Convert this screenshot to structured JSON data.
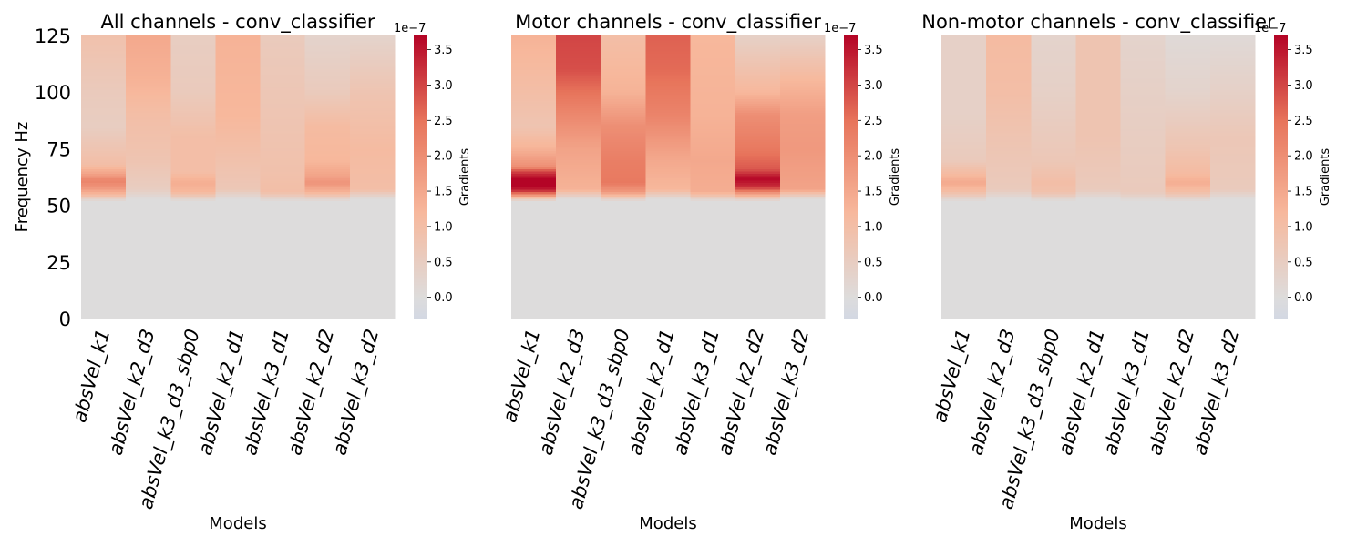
{
  "chart_data": [
    {
      "type": "heatmap",
      "title": "All channels - conv_classifier",
      "xlabel": "Models",
      "ylabel": "Frequency Hz",
      "categories": [
        "absVel_k1",
        "absVel_k2_d3",
        "absVel_k3_d3_sbp0",
        "absVel_k2_d1",
        "absVel_k3_d1",
        "absVel_k2_d2",
        "absVel_k3_d2"
      ],
      "yticks": [
        0,
        25,
        50,
        75,
        100,
        125
      ],
      "ylim": [
        0,
        125
      ],
      "colorbar": {
        "label": "Gradients",
        "multiplier": "1e−7",
        "range": [
          -0.3,
          3.7
        ],
        "ticks": [
          0.0,
          0.5,
          1.0,
          1.5,
          2.0,
          2.5,
          3.0,
          3.5
        ]
      },
      "profiles": [
        [
          [
            0,
            0
          ],
          [
            52,
            0
          ],
          [
            55,
            1.2
          ],
          [
            58,
            1.9
          ],
          [
            61,
            2.2
          ],
          [
            64,
            1.6
          ],
          [
            68,
            1.0
          ],
          [
            75,
            0.8
          ],
          [
            85,
            0.5
          ],
          [
            100,
            0.6
          ],
          [
            125,
            0.9
          ]
        ],
        [
          [
            0,
            0
          ],
          [
            53,
            0
          ],
          [
            57,
            0.5
          ],
          [
            70,
            0.8
          ],
          [
            90,
            1.0
          ],
          [
            105,
            1.3
          ],
          [
            125,
            1.5
          ]
        ],
        [
          [
            0,
            0
          ],
          [
            52,
            0
          ],
          [
            56,
            1.2
          ],
          [
            60,
            1.4
          ],
          [
            65,
            1.0
          ],
          [
            80,
            1.0
          ],
          [
            100,
            0.6
          ],
          [
            125,
            0.5
          ]
        ],
        [
          [
            0,
            0
          ],
          [
            53,
            0
          ],
          [
            57,
            0.7
          ],
          [
            70,
            0.9
          ],
          [
            90,
            1.2
          ],
          [
            125,
            1.3
          ]
        ],
        [
          [
            0,
            0
          ],
          [
            52,
            0
          ],
          [
            56,
            1.0
          ],
          [
            65,
            0.9
          ],
          [
            85,
            0.8
          ],
          [
            125,
            0.6
          ]
        ],
        [
          [
            0,
            0
          ],
          [
            52,
            0
          ],
          [
            56,
            1.3
          ],
          [
            60,
            1.9
          ],
          [
            63,
            1.6
          ],
          [
            70,
            1.2
          ],
          [
            85,
            1.1
          ],
          [
            100,
            0.6
          ],
          [
            125,
            0.3
          ]
        ],
        [
          [
            0,
            0
          ],
          [
            53,
            0
          ],
          [
            57,
            1.0
          ],
          [
            75,
            1.1
          ],
          [
            100,
            0.8
          ],
          [
            125,
            0.3
          ]
        ]
      ]
    },
    {
      "type": "heatmap",
      "title": "Motor channels - conv_classifier",
      "xlabel": "Models",
      "categories": [
        "absVel_k1",
        "absVel_k2_d3",
        "absVel_k3_d3_sbp0",
        "absVel_k2_d1",
        "absVel_k3_d1",
        "absVel_k2_d2",
        "absVel_k3_d2"
      ],
      "ylim": [
        0,
        125
      ],
      "colorbar": {
        "label": "Gradients",
        "multiplier": "1e−7",
        "range": [
          -0.3,
          3.7
        ],
        "ticks": [
          0.0,
          0.5,
          1.0,
          1.5,
          2.0,
          2.5,
          3.0,
          3.5
        ]
      },
      "profiles": [
        [
          [
            0,
            0
          ],
          [
            52,
            0
          ],
          [
            54,
            1.4
          ],
          [
            56,
            3.0
          ],
          [
            58,
            3.7
          ],
          [
            62,
            3.7
          ],
          [
            65,
            3.0
          ],
          [
            67,
            2.0
          ],
          [
            75,
            1.3
          ],
          [
            85,
            0.8
          ],
          [
            100,
            1.0
          ],
          [
            125,
            1.3
          ]
        ],
        [
          [
            0,
            0
          ],
          [
            53,
            0
          ],
          [
            57,
            1.3
          ],
          [
            75,
            1.6
          ],
          [
            95,
            2.3
          ],
          [
            110,
            2.9
          ],
          [
            125,
            3.0
          ]
        ],
        [
          [
            0,
            0
          ],
          [
            52,
            0
          ],
          [
            56,
            1.8
          ],
          [
            60,
            2.4
          ],
          [
            70,
            2.3
          ],
          [
            85,
            2.0
          ],
          [
            100,
            1.3
          ],
          [
            125,
            1.0
          ]
        ],
        [
          [
            0,
            0
          ],
          [
            53,
            0
          ],
          [
            57,
            1.2
          ],
          [
            70,
            1.5
          ],
          [
            90,
            2.2
          ],
          [
            110,
            2.6
          ],
          [
            125,
            2.7
          ]
        ],
        [
          [
            0,
            0
          ],
          [
            52,
            0
          ],
          [
            56,
            1.4
          ],
          [
            70,
            1.5
          ],
          [
            90,
            1.3
          ],
          [
            125,
            1.2
          ]
        ],
        [
          [
            0,
            0
          ],
          [
            52,
            0
          ],
          [
            55,
            1.6
          ],
          [
            58,
            3.2
          ],
          [
            62,
            3.7
          ],
          [
            66,
            2.8
          ],
          [
            75,
            2.4
          ],
          [
            90,
            2.0
          ],
          [
            100,
            1.2
          ],
          [
            125,
            0.4
          ]
        ],
        [
          [
            0,
            0
          ],
          [
            53,
            0
          ],
          [
            57,
            1.6
          ],
          [
            75,
            1.8
          ],
          [
            90,
            1.7
          ],
          [
            105,
            1.2
          ],
          [
            125,
            0.4
          ]
        ]
      ]
    },
    {
      "type": "heatmap",
      "title": "Non-motor channels - conv_classifier",
      "xlabel": "Models",
      "categories": [
        "absVel_k1",
        "absVel_k2_d3",
        "absVel_k3_d3_sbp0",
        "absVel_k2_d1",
        "absVel_k3_d1",
        "absVel_k2_d2",
        "absVel_k3_d2"
      ],
      "ylim": [
        0,
        125
      ],
      "colorbar": {
        "label": "Gradients",
        "multiplier": "1e−7",
        "range": [
          -0.3,
          3.7
        ],
        "ticks": [
          0.0,
          0.5,
          1.0,
          1.5,
          2.0,
          2.5,
          3.0,
          3.5
        ]
      },
      "profiles": [
        [
          [
            0,
            0
          ],
          [
            52,
            0
          ],
          [
            56,
            1.0
          ],
          [
            60,
            1.5
          ],
          [
            64,
            1.1
          ],
          [
            70,
            0.6
          ],
          [
            90,
            0.4
          ],
          [
            125,
            0.4
          ]
        ],
        [
          [
            0,
            0
          ],
          [
            53,
            0
          ],
          [
            57,
            0.6
          ],
          [
            80,
            0.8
          ],
          [
            100,
            1.0
          ],
          [
            125,
            1.1
          ]
        ],
        [
          [
            0,
            0
          ],
          [
            52,
            0
          ],
          [
            56,
            0.9
          ],
          [
            60,
            1.0
          ],
          [
            70,
            0.7
          ],
          [
            100,
            0.4
          ],
          [
            125,
            0.3
          ]
        ],
        [
          [
            0,
            0
          ],
          [
            53,
            0
          ],
          [
            57,
            0.6
          ],
          [
            80,
            0.8
          ],
          [
            125,
            0.8
          ]
        ],
        [
          [
            0,
            0
          ],
          [
            52,
            0
          ],
          [
            56,
            0.6
          ],
          [
            80,
            0.5
          ],
          [
            125,
            0.3
          ]
        ],
        [
          [
            0,
            0
          ],
          [
            52,
            0
          ],
          [
            56,
            1.0
          ],
          [
            60,
            1.4
          ],
          [
            64,
            1.1
          ],
          [
            75,
            0.8
          ],
          [
            100,
            0.3
          ],
          [
            125,
            0.1
          ]
        ],
        [
          [
            0,
            0
          ],
          [
            53,
            0
          ],
          [
            57,
            0.6
          ],
          [
            80,
            0.7
          ],
          [
            100,
            0.4
          ],
          [
            125,
            0.1
          ]
        ]
      ]
    }
  ],
  "colors": {
    "cmap": [
      "#3b4cc0",
      "#aac7fd",
      "#dddcdc",
      "#f7b89c",
      "#e7745b",
      "#b40426"
    ],
    "cmap_stops": [
      -3.7,
      -1.5,
      0.0,
      1.2,
      2.5,
      3.7
    ]
  }
}
